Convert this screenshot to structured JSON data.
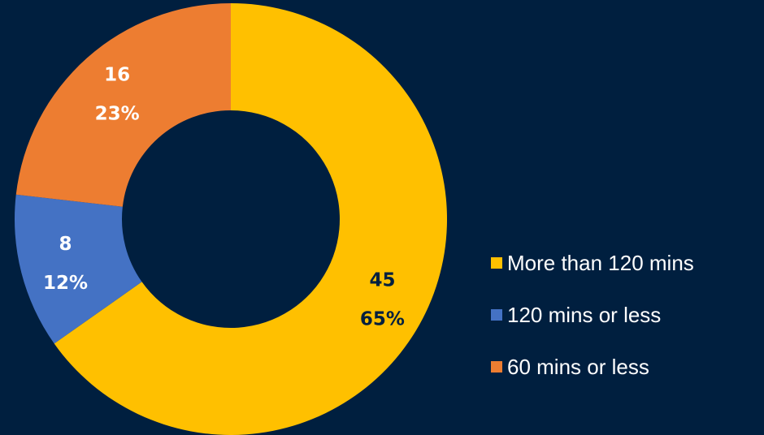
{
  "chart_data": {
    "type": "pie",
    "variant": "donut",
    "slices": [
      {
        "label": "More than 120 mins",
        "value": 45,
        "percent": "65%",
        "color": "#FFC000",
        "text_color": "#001f3f"
      },
      {
        "label": "120 mins or less",
        "value": 8,
        "percent": "12%",
        "color": "#4472C4",
        "text_color": "#ffffff"
      },
      {
        "label": "60 mins or less",
        "value": 16,
        "percent": "23%",
        "color": "#ED7D31",
        "text_color": "#ffffff"
      }
    ],
    "legend_position": "right",
    "background": "#001f3f"
  },
  "legend": {
    "items": [
      {
        "label": "More than 120 mins",
        "color": "#FFC000"
      },
      {
        "label": "120 mins or less",
        "color": "#4472C4"
      },
      {
        "label": "60 mins or less",
        "color": "#ED7D31"
      }
    ]
  }
}
